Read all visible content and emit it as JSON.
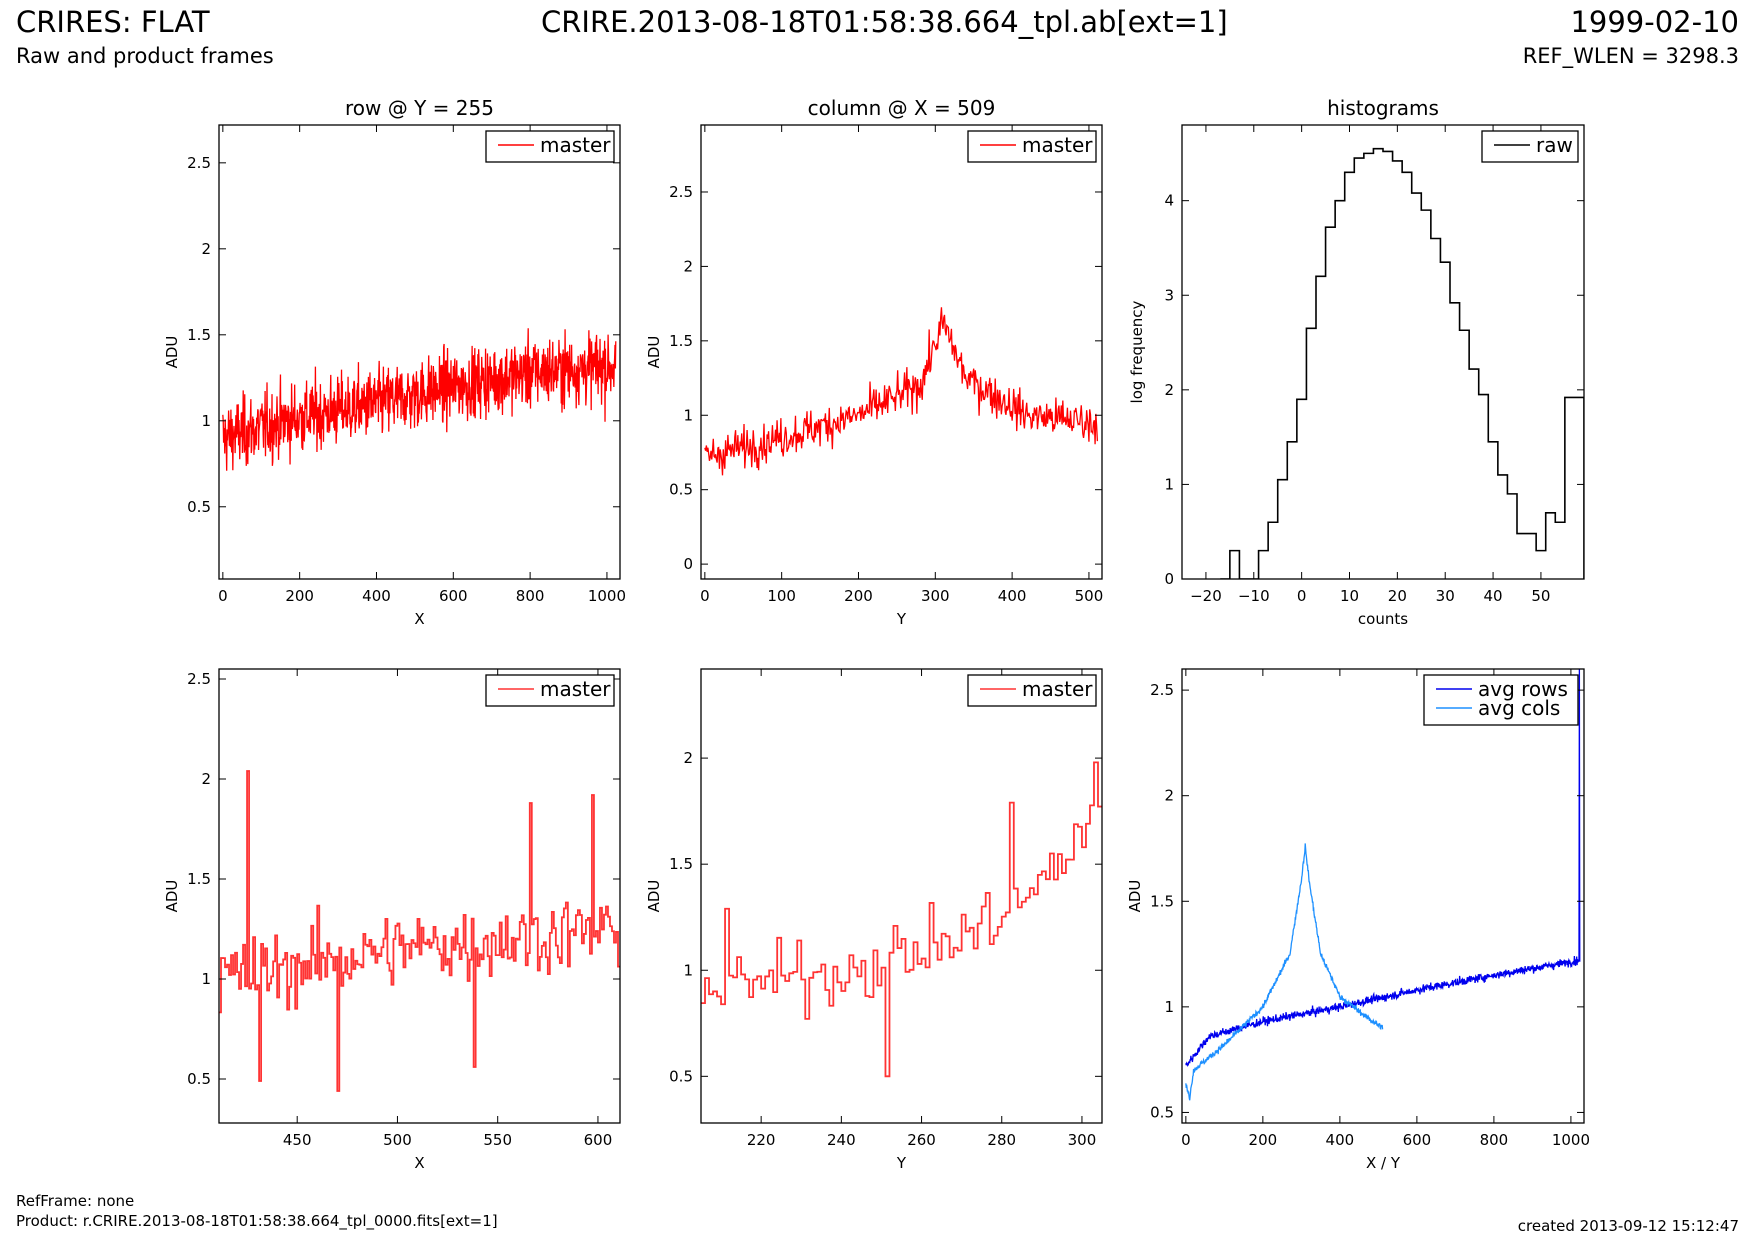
{
  "header": {
    "title": "CRIRES: FLAT",
    "subtitle": "Raw and product frames",
    "file": "CRIRE.2013-08-18T01:58:38.664_tpl.ab[ext=1]",
    "date": "1999-02-10",
    "ref_wlen": "REF_WLEN = 3298.3"
  },
  "footer": {
    "refframe": "RefFrame: none",
    "product": "Product: r.CRIRE.2013-08-18T01:58:38.664_tpl_0000.fits[ext=1]",
    "created": "created 2013-09-12 15:12:47"
  },
  "colors": {
    "red": "#ff0000",
    "lightred": "#ff3333",
    "blue": "#0000ee",
    "lightblue": "#1e90ff",
    "black": "#000000"
  },
  "chart_data": [
    {
      "id": "row",
      "type": "line",
      "title": "row @ Y = 255",
      "xlabel": "X",
      "ylabel": "ADU",
      "xlim": [
        -10,
        1034
      ],
      "ylim": [
        0.08,
        2.72
      ],
      "xticks": [
        0,
        200,
        400,
        600,
        800,
        1000
      ],
      "yticks": [
        0.5,
        1.0,
        1.5,
        2.0,
        2.5
      ],
      "legend": "top-right",
      "series": [
        {
          "name": "master",
          "color": "#ff0000",
          "step": false,
          "npoints": 1024,
          "trend": [
            [
              0,
              0.9
            ],
            [
              200,
              1.02
            ],
            [
              400,
              1.1
            ],
            [
              600,
              1.2
            ],
            [
              800,
              1.28
            ],
            [
              1024,
              1.32
            ]
          ],
          "noise": 0.26
        }
      ]
    },
    {
      "id": "col",
      "type": "line",
      "title": "column @ X = 509",
      "xlabel": "Y",
      "ylabel": "ADU",
      "xlim": [
        -5,
        517
      ],
      "ylim": [
        -0.1,
        2.95
      ],
      "xticks": [
        0,
        100,
        200,
        300,
        400,
        500
      ],
      "yticks": [
        0.0,
        0.5,
        1.0,
        1.5,
        2.0,
        2.5
      ],
      "legend": "top-right",
      "series": [
        {
          "name": "master",
          "color": "#ff0000",
          "step": false,
          "npoints": 512,
          "trend": [
            [
              0,
              0.72
            ],
            [
              100,
              0.85
            ],
            [
              200,
              1.0
            ],
            [
              280,
              1.2
            ],
            [
              310,
              1.62
            ],
            [
              340,
              1.25
            ],
            [
              420,
              1.0
            ],
            [
              512,
              0.95
            ]
          ],
          "noise": 0.17
        }
      ]
    },
    {
      "id": "hist",
      "type": "bar",
      "title": "histograms",
      "xlabel": "counts",
      "ylabel": "log frequency",
      "xlim": [
        -25,
        59
      ],
      "ylim": [
        0,
        4.8
      ],
      "xticks": [
        -20,
        -10,
        0,
        10,
        20,
        30,
        40,
        50
      ],
      "yticks": [
        0,
        1,
        2,
        3,
        4
      ],
      "legend": "top-right",
      "bin_edges": [
        -17,
        -15,
        -13,
        -11,
        -9,
        -7,
        -5,
        -3,
        -1,
        1,
        3,
        5,
        7,
        9,
        11,
        13,
        15,
        17,
        19,
        21,
        23,
        25,
        27,
        29,
        31,
        33,
        35,
        37,
        39,
        41,
        43,
        45,
        47,
        49,
        51,
        53,
        55,
        57,
        59
      ],
      "series": [
        {
          "name": "raw",
          "color": "#000000",
          "values": [
            0,
            0.3,
            0,
            0,
            0.3,
            0.6,
            1.05,
            1.45,
            1.9,
            2.65,
            3.2,
            3.72,
            4.0,
            4.3,
            4.45,
            4.5,
            4.55,
            4.52,
            4.42,
            4.3,
            4.08,
            3.9,
            3.6,
            3.35,
            2.92,
            2.63,
            2.22,
            1.95,
            1.45,
            1.1,
            0.9,
            0.48,
            0.48,
            0.3,
            0.7,
            0.6,
            1.92,
            1.92
          ]
        }
      ]
    },
    {
      "id": "rowzoom",
      "type": "line",
      "title": "",
      "xlabel": "X",
      "ylabel": "ADU",
      "xlim": [
        411,
        611
      ],
      "ylim": [
        0.28,
        2.55
      ],
      "xticks": [
        450,
        500,
        550,
        600
      ],
      "yticks": [
        0.5,
        1.0,
        1.5,
        2.0,
        2.5
      ],
      "legend": "top-right",
      "series": [
        {
          "name": "master",
          "color": "#ff3333",
          "step": true,
          "npoints": 200,
          "xstart": 411,
          "trend": [
            [
              411,
              1.0
            ],
            [
              500,
              1.15
            ],
            [
              611,
              1.25
            ]
          ],
          "noise": 0.24,
          "spikes": [
            [
              425,
              2.04
            ],
            [
              431,
              0.49
            ],
            [
              470,
              0.44
            ],
            [
              538,
              0.56
            ],
            [
              566,
              1.88
            ],
            [
              597,
              1.92
            ]
          ]
        }
      ]
    },
    {
      "id": "colzoom",
      "type": "line",
      "title": "",
      "xlabel": "Y",
      "ylabel": "ADU",
      "xlim": [
        205,
        305
      ],
      "ylim": [
        0.28,
        2.42
      ],
      "xticks": [
        220,
        240,
        260,
        280,
        300
      ],
      "yticks": [
        0.5,
        1.0,
        1.5,
        2.0
      ],
      "legend": "top-right",
      "series": [
        {
          "name": "master",
          "color": "#ff3333",
          "step": true,
          "npoints": 100,
          "xstart": 205,
          "trend": [
            [
              205,
              0.9
            ],
            [
              240,
              1.0
            ],
            [
              270,
              1.15
            ],
            [
              290,
              1.4
            ],
            [
              305,
              1.8
            ]
          ],
          "noise": 0.2,
          "spikes": [
            [
              211,
              1.29
            ],
            [
              251,
              0.5
            ],
            [
              282,
              1.79
            ],
            [
              303,
              1.98
            ]
          ]
        }
      ]
    },
    {
      "id": "avg",
      "type": "line",
      "title": "",
      "xlabel": "X / Y",
      "ylabel": "ADU",
      "xlim": [
        -10,
        1034
      ],
      "ylim": [
        0.45,
        2.6
      ],
      "xticks": [
        0,
        200,
        400,
        600,
        800,
        1000
      ],
      "yticks": [
        0.5,
        1.0,
        1.5,
        2.0,
        2.5
      ],
      "legend": "top-right",
      "series": [
        {
          "name": "avg rows",
          "color": "#0000ee",
          "step": false,
          "npoints": 1024,
          "trend": [
            [
              0,
              0.72
            ],
            [
              60,
              0.86
            ],
            [
              200,
              0.93
            ],
            [
              400,
              1.0
            ],
            [
              600,
              1.08
            ],
            [
              800,
              1.15
            ],
            [
              1020,
              1.22
            ]
          ],
          "noise": 0.025,
          "spikes": [
            [
              1022,
              2.6
            ]
          ]
        },
        {
          "name": "avg cols",
          "color": "#1e90ff",
          "step": false,
          "npoints": 512,
          "trend": [
            [
              0,
              0.63
            ],
            [
              10,
              0.57
            ],
            [
              20,
              0.7
            ],
            [
              100,
              0.82
            ],
            [
              200,
              1.0
            ],
            [
              270,
              1.25
            ],
            [
              300,
              1.6
            ],
            [
              310,
              1.76
            ],
            [
              320,
              1.6
            ],
            [
              350,
              1.25
            ],
            [
              400,
              1.05
            ],
            [
              470,
              0.95
            ],
            [
              512,
              0.9
            ]
          ],
          "noise": 0.018
        }
      ]
    }
  ]
}
